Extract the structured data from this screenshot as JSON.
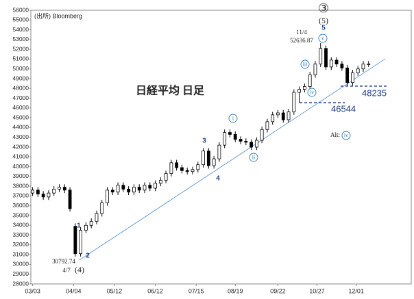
{
  "chart_data": {
    "type": "candlestick",
    "title": "日経平均 日足",
    "source": "(出所) Bloomberg",
    "x": [
      0,
      3,
      6,
      9,
      12,
      15,
      18,
      21,
      24,
      27,
      30,
      33,
      36,
      39,
      42,
      45,
      48,
      51,
      54,
      57,
      60,
      63,
      66,
      69,
      72,
      75,
      78,
      81,
      84,
      87,
      90,
      93,
      96,
      99,
      102,
      105,
      108,
      111,
      114,
      117,
      120,
      123,
      126,
      129,
      132,
      135,
      138,
      141,
      144,
      147,
      150,
      153,
      156,
      159,
      162,
      165,
      168,
      171,
      174,
      177,
      180,
      183,
      186,
      189
    ],
    "open": [
      37300,
      37600,
      37200,
      36900,
      37300,
      37700,
      37900,
      37600,
      33900,
      31100,
      33500,
      34000,
      34400,
      35200,
      36300,
      37600,
      37400,
      38100,
      37700,
      37400,
      37900,
      37600,
      38100,
      37800,
      38300,
      38600,
      39300,
      40400,
      39900,
      39600,
      39500,
      39700,
      40200,
      41600,
      40100,
      40800,
      42200,
      43500,
      43300,
      42800,
      42600,
      42500,
      42000,
      42700,
      43800,
      44600,
      45300,
      45500,
      44800,
      45600,
      47600,
      47900,
      48200,
      49400,
      50500,
      52100,
      50200,
      50900,
      50500,
      50100,
      48600,
      49600,
      50000,
      50500
    ],
    "high": [
      37900,
      37900,
      37500,
      37600,
      38000,
      38200,
      38200,
      37900,
      34200,
      33800,
      34300,
      34700,
      35500,
      36600,
      37900,
      37900,
      38400,
      38400,
      38000,
      38200,
      38200,
      38400,
      38400,
      38600,
      38900,
      39600,
      40700,
      40700,
      40200,
      39900,
      40000,
      40500,
      41900,
      41900,
      41100,
      42500,
      43800,
      43800,
      43600,
      43100,
      42900,
      42800,
      43000,
      44100,
      44900,
      45600,
      45800,
      45800,
      45900,
      47900,
      48200,
      48500,
      49700,
      50800,
      52636.87,
      52400,
      51200,
      51200,
      50800,
      50400,
      49900,
      50300,
      50800,
      50800
    ],
    "low": [
      37000,
      36900,
      36600,
      36600,
      37000,
      37400,
      37300,
      35400,
      30792.74,
      30800,
      33200,
      33700,
      34100,
      34900,
      36000,
      37100,
      37100,
      37400,
      37100,
      37100,
      37300,
      37300,
      37500,
      37500,
      38000,
      38300,
      39000,
      39600,
      39300,
      39200,
      39200,
      39400,
      39900,
      39800,
      39800,
      40500,
      41900,
      43000,
      42500,
      42300,
      42200,
      41700,
      41700,
      42400,
      43500,
      44300,
      45000,
      44500,
      44500,
      45300,
      46544,
      47600,
      47900,
      49100,
      50200,
      49900,
      49900,
      50200,
      49800,
      48235,
      48300,
      49300,
      49700,
      50200
    ],
    "close": [
      37600,
      37200,
      36900,
      37300,
      37700,
      37900,
      37600,
      35700,
      31100,
      33500,
      34000,
      34400,
      35200,
      36300,
      37600,
      37400,
      38100,
      37700,
      37400,
      37900,
      37600,
      38100,
      37800,
      38300,
      38600,
      39300,
      40400,
      39900,
      39600,
      39500,
      39700,
      40200,
      41600,
      40100,
      40800,
      42200,
      43500,
      43300,
      42800,
      42600,
      42500,
      42000,
      42700,
      43800,
      44600,
      45300,
      45500,
      44800,
      45600,
      47600,
      47900,
      48200,
      49400,
      50500,
      52100,
      50200,
      50900,
      50500,
      50100,
      48600,
      49600,
      50000,
      50500,
      50500
    ],
    "color": "#000000",
    "up_fill": "#ffffff",
    "xlim": [
      -1,
      213
    ],
    "xticks": [
      {
        "value": 0,
        "label": "03/03"
      },
      {
        "value": 23,
        "label": "04/04"
      },
      {
        "value": 46,
        "label": "05/12"
      },
      {
        "value": 69,
        "label": "06/12"
      },
      {
        "value": 92,
        "label": "07/15"
      },
      {
        "value": 114,
        "label": "08/19"
      },
      {
        "value": 138,
        "label": "09/22"
      },
      {
        "value": 160,
        "label": "10/27"
      },
      {
        "value": 182,
        "label": "12/01"
      }
    ],
    "ylim": [
      28000,
      56000
    ],
    "yticks": [
      28000,
      29000,
      30000,
      31000,
      32000,
      33000,
      34000,
      35000,
      36000,
      37000,
      38000,
      39000,
      40000,
      41000,
      42000,
      43000,
      44000,
      45000,
      46000,
      47000,
      48000,
      49000,
      50000,
      51000,
      52000,
      53000,
      54000,
      55000,
      56000
    ],
    "levels": [
      46544,
      48235
    ],
    "level_color": "#1f3c88",
    "trend_color": "#6a9fd4",
    "wave_labels": [
      "1",
      "2",
      "3",
      "4",
      "5"
    ],
    "subwave_labels": [
      "i",
      "ii",
      "iii",
      "iv",
      "v"
    ],
    "alt_label": "Alt:",
    "alt_subwave": "iv",
    "low_label": {
      "value": 30792.74,
      "date": "4/7",
      "wave": "(4)"
    },
    "high_label": {
      "date": "11/4",
      "value": 52636.87,
      "degree": "③",
      "wave": "(5)"
    }
  }
}
